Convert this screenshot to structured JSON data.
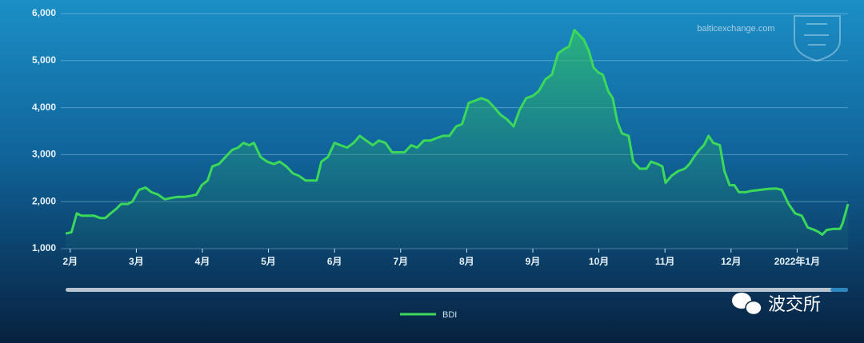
{
  "chart_data": {
    "type": "line",
    "watermark": "balticexchange.com",
    "overlay": "波交所",
    "ylim": [
      1000,
      6000
    ],
    "yticks": [
      {
        "value": 1000,
        "label": "1,000"
      },
      {
        "value": 2000,
        "label": "2,000"
      },
      {
        "value": 3000,
        "label": "3,000"
      },
      {
        "value": 4000,
        "label": "4,000"
      },
      {
        "value": 5000,
        "label": "5,000"
      },
      {
        "value": 6000,
        "label": "6,000"
      }
    ],
    "xlim": [
      -0.07,
      11.77
    ],
    "xticks": [
      {
        "value": 0,
        "label": "2月"
      },
      {
        "value": 1,
        "label": "3月"
      },
      {
        "value": 2,
        "label": "4月"
      },
      {
        "value": 3,
        "label": "5月"
      },
      {
        "value": 4,
        "label": "6月"
      },
      {
        "value": 5,
        "label": "7月"
      },
      {
        "value": 6,
        "label": "8月"
      },
      {
        "value": 7,
        "label": "9月"
      },
      {
        "value": 8,
        "label": "10月"
      },
      {
        "value": 9,
        "label": "11月"
      },
      {
        "value": 10,
        "label": "12月"
      },
      {
        "value": 11,
        "label": "2022年1月"
      }
    ],
    "grid": true,
    "legend": "bottom",
    "series": [
      {
        "name": "BDI",
        "color": "#3bd85a",
        "x": [
          -0.07,
          0.02,
          0.1,
          0.17,
          0.27,
          0.36,
          0.46,
          0.53,
          0.61,
          0.7,
          0.77,
          0.87,
          0.94,
          1.04,
          1.14,
          1.23,
          1.33,
          1.43,
          1.53,
          1.62,
          1.72,
          1.82,
          1.91,
          1.99,
          2.08,
          2.15,
          2.25,
          2.35,
          2.45,
          2.54,
          2.62,
          2.71,
          2.78,
          2.88,
          2.98,
          3.08,
          3.17,
          3.27,
          3.37,
          3.46,
          3.56,
          3.66,
          3.73,
          3.8,
          3.9,
          4.0,
          4.09,
          4.19,
          4.29,
          4.38,
          4.48,
          4.58,
          4.67,
          4.77,
          4.87,
          4.96,
          5.06,
          5.16,
          5.25,
          5.35,
          5.45,
          5.54,
          5.64,
          5.74,
          5.84,
          5.93,
          6.03,
          6.13,
          6.22,
          6.32,
          6.42,
          6.51,
          6.61,
          6.71,
          6.8,
          6.9,
          7.0,
          7.09,
          7.19,
          7.29,
          7.38,
          7.48,
          7.55,
          7.63,
          7.7,
          7.77,
          7.85,
          7.92,
          7.99,
          8.06,
          8.14,
          8.21,
          8.28,
          8.35,
          8.45,
          8.52,
          8.62,
          8.72,
          8.79,
          8.89,
          8.96,
          9.01,
          9.1,
          9.2,
          9.3,
          9.37,
          9.44,
          9.52,
          9.59,
          9.66,
          9.73,
          9.83,
          9.9,
          9.98,
          10.05,
          10.12,
          10.22,
          10.31,
          10.44,
          10.56,
          10.68,
          10.77,
          10.87,
          10.97,
          11.07,
          11.16,
          11.26,
          11.33,
          11.38,
          11.45,
          11.55,
          11.65,
          11.69,
          11.77
        ],
        "values": [
          1320,
          1350,
          1750,
          1700,
          1700,
          1700,
          1650,
          1650,
          1750,
          1850,
          1950,
          1950,
          2000,
          2250,
          2300,
          2200,
          2150,
          2050,
          2080,
          2100,
          2100,
          2120,
          2150,
          2350,
          2450,
          2750,
          2800,
          2950,
          3100,
          3150,
          3250,
          3200,
          3250,
          2950,
          2850,
          2800,
          2850,
          2750,
          2600,
          2550,
          2450,
          2450,
          2450,
          2850,
          2950,
          3250,
          3200,
          3150,
          3250,
          3400,
          3300,
          3200,
          3300,
          3250,
          3050,
          3050,
          3050,
          3200,
          3150,
          3300,
          3300,
          3350,
          3400,
          3400,
          3600,
          3650,
          4100,
          4150,
          4200,
          4150,
          4000,
          3850,
          3750,
          3600,
          3950,
          4200,
          4250,
          4350,
          4600,
          4700,
          5150,
          5250,
          5300,
          5650,
          5550,
          5450,
          5200,
          4850,
          4750,
          4700,
          4350,
          4200,
          3700,
          3450,
          3400,
          2850,
          2700,
          2700,
          2850,
          2800,
          2750,
          2400,
          2550,
          2650,
          2700,
          2800,
          2950,
          3100,
          3200,
          3400,
          3250,
          3200,
          2650,
          2350,
          2350,
          2200,
          2200,
          2230,
          2250,
          2270,
          2280,
          2250,
          1950,
          1750,
          1700,
          1450,
          1400,
          1350,
          1300,
          1400,
          1420,
          1420,
          1550,
          1950
        ]
      }
    ]
  }
}
